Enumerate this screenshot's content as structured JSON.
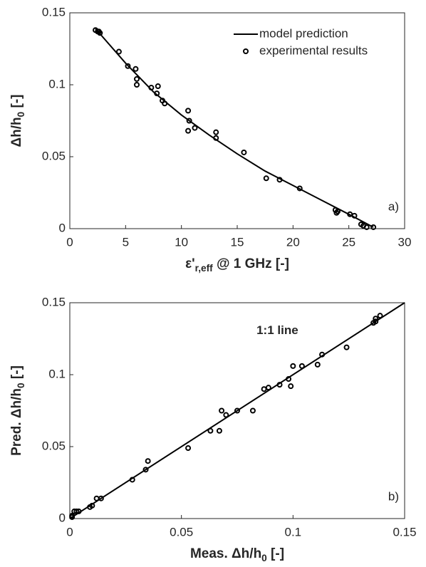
{
  "chart_data": [
    {
      "type": "scatter",
      "xlabel": [
        "ε'",
        "r,eff",
        " @ 1 GHz [-]"
      ],
      "ylabel": [
        "Δh/h",
        "0",
        " [-]"
      ],
      "xlim": [
        0,
        30
      ],
      "xticks": [
        0,
        5,
        10,
        15,
        20,
        25,
        30
      ],
      "ylim": [
        0,
        0.15
      ],
      "yticks": [
        0,
        0.05,
        0.1,
        0.15
      ],
      "legend": "upper right",
      "annotation": "a)",
      "series": [
        {
          "name": "model prediction",
          "style": "line",
          "color": "#000000",
          "x": [
            2.3,
            5,
            7.5,
            10,
            12.5,
            15,
            17.5,
            20,
            22.5,
            25,
            27.2
          ],
          "values": [
            0.139,
            0.115,
            0.095,
            0.079,
            0.065,
            0.052,
            0.04,
            0.03,
            0.02,
            0.01,
            0.001
          ]
        },
        {
          "name": "experimental results",
          "style": "markers",
          "color": "#000000",
          "x": [
            2.3,
            2.5,
            2.7,
            2.6,
            4.4,
            5.2,
            5.9,
            6.0,
            6.0,
            7.3,
            7.9,
            7.8,
            8.3,
            8.5,
            10.6,
            10.7,
            10.6,
            11.2,
            13.1,
            13.1,
            15.6,
            17.6,
            18.8,
            20.6,
            23.8,
            24.0,
            23.9,
            25.1,
            25.5,
            26.1,
            26.3,
            26.6,
            27.2
          ],
          "values": [
            0.138,
            0.137,
            0.136,
            0.137,
            0.123,
            0.113,
            0.111,
            0.104,
            0.1,
            0.098,
            0.099,
            0.094,
            0.089,
            0.087,
            0.082,
            0.075,
            0.068,
            0.07,
            0.067,
            0.063,
            0.053,
            0.035,
            0.034,
            0.028,
            0.013,
            0.012,
            0.011,
            0.01,
            0.009,
            0.003,
            0.002,
            0.001,
            0.001
          ]
        }
      ]
    },
    {
      "type": "scatter",
      "xlabel": [
        "Meas. Δh/h",
        "0",
        " [-]"
      ],
      "ylabel": [
        "Pred. Δh/h",
        "0",
        " [-]"
      ],
      "xlim": [
        0,
        0.15
      ],
      "xticks": [
        0,
        0.05,
        0.1,
        0.15
      ],
      "ylim": [
        0,
        0.15
      ],
      "yticks": [
        0,
        0.05,
        0.1,
        0.15
      ],
      "annotation": "b)",
      "series": [
        {
          "name": "1:1 line",
          "style": "line",
          "color": "#000000",
          "x": [
            0,
            0.15
          ],
          "values": [
            0,
            0.15
          ]
        },
        {
          "style": "markers",
          "color": "#000000",
          "x": [
            0.001,
            0.002,
            0.003,
            0.004,
            0.001,
            0.009,
            0.01,
            0.012,
            0.014,
            0.028,
            0.034,
            0.035,
            0.053,
            0.063,
            0.067,
            0.068,
            0.07,
            0.075,
            0.082,
            0.087,
            0.089,
            0.094,
            0.098,
            0.099,
            0.1,
            0.104,
            0.111,
            0.113,
            0.124,
            0.136,
            0.137,
            0.137,
            0.139
          ],
          "values": [
            0.002,
            0.005,
            0.005,
            0.005,
            0.001,
            0.008,
            0.009,
            0.014,
            0.014,
            0.027,
            0.034,
            0.04,
            0.049,
            0.061,
            0.061,
            0.075,
            0.072,
            0.075,
            0.075,
            0.09,
            0.091,
            0.093,
            0.097,
            0.092,
            0.106,
            0.106,
            0.107,
            0.114,
            0.119,
            0.136,
            0.137,
            0.139,
            0.141
          ]
        }
      ]
    }
  ]
}
